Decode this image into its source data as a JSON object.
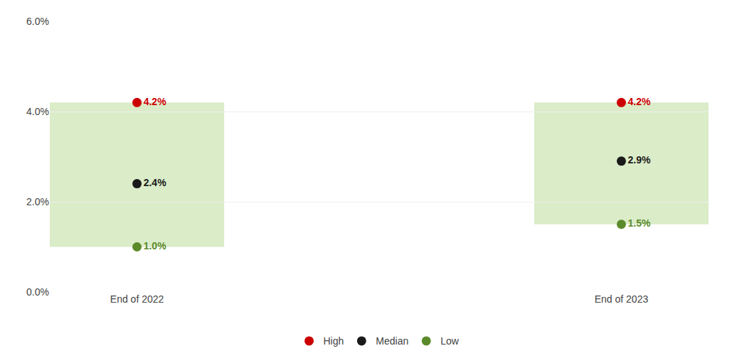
{
  "chart_data": {
    "type": "scatter",
    "categories": [
      "End of 2022",
      "End of 2023"
    ],
    "series": [
      {
        "name": "High",
        "color": "#cc0000",
        "values": [
          4.2,
          4.2
        ],
        "value_labels": [
          "4.2%",
          "4.2%"
        ]
      },
      {
        "name": "Median",
        "color": "#1a1a1a",
        "values": [
          2.4,
          2.9
        ],
        "value_labels": [
          "2.4%",
          "2.9%"
        ]
      },
      {
        "name": "Low",
        "color": "#5a8a2a",
        "values": [
          1.0,
          1.5
        ],
        "value_labels": [
          "1.0%",
          "1.5%"
        ]
      }
    ],
    "color": "#daecc8",
    "marker": "circle",
    "ylim": [
      0.0,
      6.0
    ],
    "yticks": [
      {
        "value": 0.0,
        "label": "0.0%"
      },
      {
        "value": 2.0,
        "label": "2.0%"
      },
      {
        "value": 4.0,
        "label": "4.0%"
      },
      {
        "value": 6.0,
        "label": "6.0%"
      }
    ],
    "grid": true,
    "data_labels": true,
    "legend": "bottom"
  }
}
